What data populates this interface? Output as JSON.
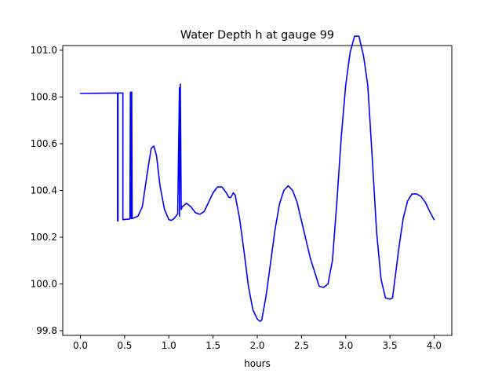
{
  "chart_data": {
    "type": "line",
    "title": "Water Depth h at gauge 99",
    "xlabel": "hours",
    "ylabel": "",
    "xlim": [
      -0.2,
      4.2
    ],
    "ylim": [
      99.78,
      101.02
    ],
    "x_ticks": [
      0.0,
      0.5,
      1.0,
      1.5,
      2.0,
      2.5,
      3.0,
      3.5,
      4.0
    ],
    "x_tick_labels": [
      "0.0",
      "0.5",
      "1.0",
      "1.5",
      "2.0",
      "2.5",
      "3.0",
      "3.5",
      "4.0"
    ],
    "y_ticks": [
      99.8,
      100.0,
      100.2,
      100.4,
      100.6,
      100.8,
      101.0
    ],
    "y_tick_labels": [
      "99.8",
      "100.0",
      "100.2",
      "100.4",
      "100.6",
      "100.8",
      "101.0"
    ],
    "grid": false,
    "legend": "none",
    "series": [
      {
        "color": "#0000ff",
        "x": [
          0.0,
          0.42,
          0.42,
          0.425,
          0.425,
          0.43,
          0.43,
          0.47,
          0.48,
          0.48,
          0.56,
          0.565,
          0.57,
          0.575,
          0.58,
          0.585,
          0.6,
          0.65,
          0.7,
          0.75,
          0.8,
          0.83,
          0.86,
          0.9,
          0.95,
          1.0,
          1.03,
          1.06,
          1.1,
          1.12,
          1.12,
          1.13,
          1.13,
          1.14,
          1.14,
          1.15,
          1.2,
          1.25,
          1.3,
          1.35,
          1.4,
          1.45,
          1.5,
          1.55,
          1.6,
          1.65,
          1.68,
          1.7,
          1.73,
          1.75,
          1.8,
          1.85,
          1.9,
          1.95,
          2.0,
          2.03,
          2.05,
          2.1,
          2.15,
          2.2,
          2.25,
          2.3,
          2.35,
          2.4,
          2.45,
          2.5,
          2.6,
          2.7,
          2.75,
          2.8,
          2.85,
          2.9,
          2.95,
          3.0,
          3.05,
          3.1,
          3.15,
          3.18,
          3.2,
          3.25,
          3.3,
          3.35,
          3.4,
          3.45,
          3.5,
          3.53,
          3.55,
          3.6,
          3.65,
          3.7,
          3.75,
          3.8,
          3.85,
          3.9,
          3.95,
          4.0
        ],
        "y": [
          100.815,
          100.817,
          100.27,
          100.27,
          100.817,
          100.817,
          100.817,
          100.817,
          100.817,
          100.275,
          100.278,
          100.82,
          100.82,
          100.28,
          100.822,
          100.28,
          100.282,
          100.29,
          100.33,
          100.46,
          100.58,
          100.59,
          100.55,
          100.42,
          100.32,
          100.275,
          100.272,
          100.28,
          100.3,
          100.84,
          100.29,
          100.855,
          100.85,
          100.32,
          100.318,
          100.33,
          100.345,
          100.33,
          100.305,
          100.298,
          100.31,
          100.35,
          100.39,
          100.415,
          100.415,
          100.39,
          100.37,
          100.37,
          100.39,
          100.38,
          100.28,
          100.14,
          99.99,
          99.89,
          99.85,
          99.84,
          99.845,
          99.95,
          100.09,
          100.23,
          100.34,
          100.4,
          100.42,
          100.4,
          100.35,
          100.27,
          100.11,
          99.99,
          99.985,
          100.0,
          100.1,
          100.35,
          100.63,
          100.85,
          100.99,
          101.06,
          101.06,
          101.01,
          100.98,
          100.85,
          100.54,
          100.22,
          100.02,
          99.94,
          99.935,
          99.94,
          100.0,
          100.15,
          100.28,
          100.355,
          100.385,
          100.385,
          100.375,
          100.35,
          100.31,
          100.275
        ]
      }
    ]
  }
}
